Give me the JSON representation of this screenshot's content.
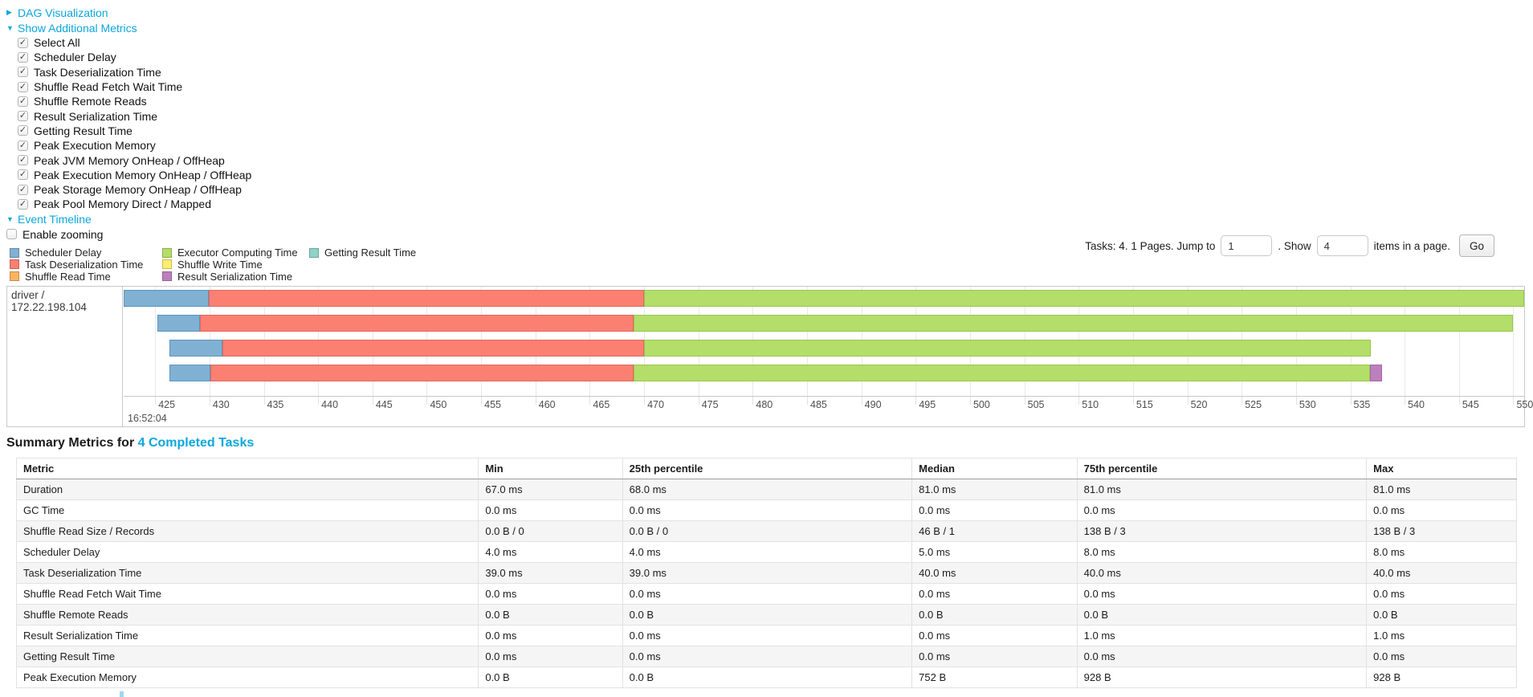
{
  "colors": {
    "link": "#0ba7dd",
    "scheduler_delay": "#80B1D3",
    "task_deserialization": "#FB8072",
    "shuffle_read": "#FDB462",
    "executor_computing": "#B3DE69",
    "shuffle_write": "#FFED6F",
    "result_serialization": "#BC80BD",
    "getting_result": "#8DD3C7"
  },
  "toggles": {
    "dag": "DAG Visualization",
    "metrics": "Show Additional Metrics",
    "timeline": "Event Timeline"
  },
  "metric_checkboxes": [
    "Select All",
    "Scheduler Delay",
    "Task Deserialization Time",
    "Shuffle Read Fetch Wait Time",
    "Shuffle Remote Reads",
    "Result Serialization Time",
    "Getting Result Time",
    "Peak Execution Memory",
    "Peak JVM Memory OnHeap / OffHeap",
    "Peak Execution Memory OnHeap / OffHeap",
    "Peak Storage Memory OnHeap / OffHeap",
    "Peak Pool Memory Direct / Mapped"
  ],
  "enable_zooming_label": "Enable zooming",
  "legend_columns": [
    [
      {
        "label": "Scheduler Delay",
        "type": "scheduler_delay"
      },
      {
        "label": "Task Deserialization Time",
        "type": "task_deserialization"
      },
      {
        "label": "Shuffle Read Time",
        "type": "shuffle_read"
      }
    ],
    [
      {
        "label": "Executor Computing Time",
        "type": "executor_computing"
      },
      {
        "label": "Shuffle Write Time",
        "type": "shuffle_write"
      },
      {
        "label": "Result Serialization Time",
        "type": "result_serialization"
      }
    ],
    [
      {
        "label": "Getting Result Time",
        "type": "getting_result"
      }
    ]
  ],
  "pager": {
    "prefix": "Tasks: 4. 1 Pages. Jump to",
    "jump_value": "1",
    "mid": ". Show",
    "show_value": "4",
    "suffix": "items in a page.",
    "go_label": "Go"
  },
  "chart_data": {
    "type": "timeline-gantt",
    "row_label": "driver / 172.22.198.104",
    "axis_min_ms": 422.1,
    "axis_max_ms": 551.0,
    "tick_step_ms": 5,
    "ticks": [
      425,
      430,
      435,
      440,
      445,
      450,
      455,
      460,
      465,
      470,
      475,
      480,
      485,
      490,
      495,
      500,
      505,
      510,
      515,
      520,
      525,
      530,
      535,
      540,
      545,
      550
    ],
    "major_label": "16:52:04",
    "tasks": [
      {
        "segments": [
          {
            "type": "scheduler_delay",
            "start": 422.1,
            "end": 429.9
          },
          {
            "type": "task_deserialization",
            "start": 429.9,
            "end": 470.0
          },
          {
            "type": "executor_computing",
            "start": 470.0,
            "end": 551.0
          }
        ]
      },
      {
        "segments": [
          {
            "type": "scheduler_delay",
            "start": 425.2,
            "end": 429.1
          },
          {
            "type": "task_deserialization",
            "start": 429.1,
            "end": 469.0
          },
          {
            "type": "executor_computing",
            "start": 469.0,
            "end": 550.0
          }
        ]
      },
      {
        "segments": [
          {
            "type": "scheduler_delay",
            "start": 426.3,
            "end": 431.2
          },
          {
            "type": "task_deserialization",
            "start": 431.2,
            "end": 470.0
          },
          {
            "type": "executor_computing",
            "start": 470.0,
            "end": 536.9
          }
        ]
      },
      {
        "segments": [
          {
            "type": "scheduler_delay",
            "start": 426.3,
            "end": 430.1
          },
          {
            "type": "task_deserialization",
            "start": 430.1,
            "end": 469.0
          },
          {
            "type": "executor_computing",
            "start": 469.0,
            "end": 536.8
          },
          {
            "type": "result_serialization",
            "start": 536.8,
            "end": 537.9
          }
        ]
      }
    ]
  },
  "summary": {
    "title_prefix": "Summary Metrics for ",
    "title_link": "4 Completed Tasks",
    "columns": [
      "Metric",
      "Min",
      "25th percentile",
      "Median",
      "75th percentile",
      "Max"
    ],
    "rows": [
      {
        "metric": "Duration",
        "values": [
          "67.0 ms",
          "68.0 ms",
          "81.0 ms",
          "81.0 ms",
          "81.0 ms"
        ]
      },
      {
        "metric": "GC Time",
        "values": [
          "0.0 ms",
          "0.0 ms",
          "0.0 ms",
          "0.0 ms",
          "0.0 ms"
        ]
      },
      {
        "metric": "Shuffle Read Size / Records",
        "values": [
          "0.0 B / 0",
          "0.0 B / 0",
          "46 B / 1",
          "138 B / 3",
          "138 B / 3"
        ]
      },
      {
        "metric": "Scheduler Delay",
        "values": [
          "4.0 ms",
          "4.0 ms",
          "5.0 ms",
          "8.0 ms",
          "8.0 ms"
        ]
      },
      {
        "metric": "Task Deserialization Time",
        "values": [
          "39.0 ms",
          "39.0 ms",
          "40.0 ms",
          "40.0 ms",
          "40.0 ms"
        ]
      },
      {
        "metric": "Shuffle Read Fetch Wait Time",
        "values": [
          "0.0 ms",
          "0.0 ms",
          "0.0 ms",
          "0.0 ms",
          "0.0 ms"
        ]
      },
      {
        "metric": "Shuffle Remote Reads",
        "values": [
          "0.0 B",
          "0.0 B",
          "0.0 B",
          "0.0 B",
          "0.0 B"
        ]
      },
      {
        "metric": "Result Serialization Time",
        "values": [
          "0.0 ms",
          "0.0 ms",
          "0.0 ms",
          "1.0 ms",
          "1.0 ms"
        ]
      },
      {
        "metric": "Getting Result Time",
        "values": [
          "0.0 ms",
          "0.0 ms",
          "0.0 ms",
          "0.0 ms",
          "0.0 ms"
        ]
      },
      {
        "metric": "Peak Execution Memory",
        "values": [
          "0.0 B",
          "0.0 B",
          "752 B",
          "928 B",
          "928 B"
        ]
      }
    ]
  }
}
